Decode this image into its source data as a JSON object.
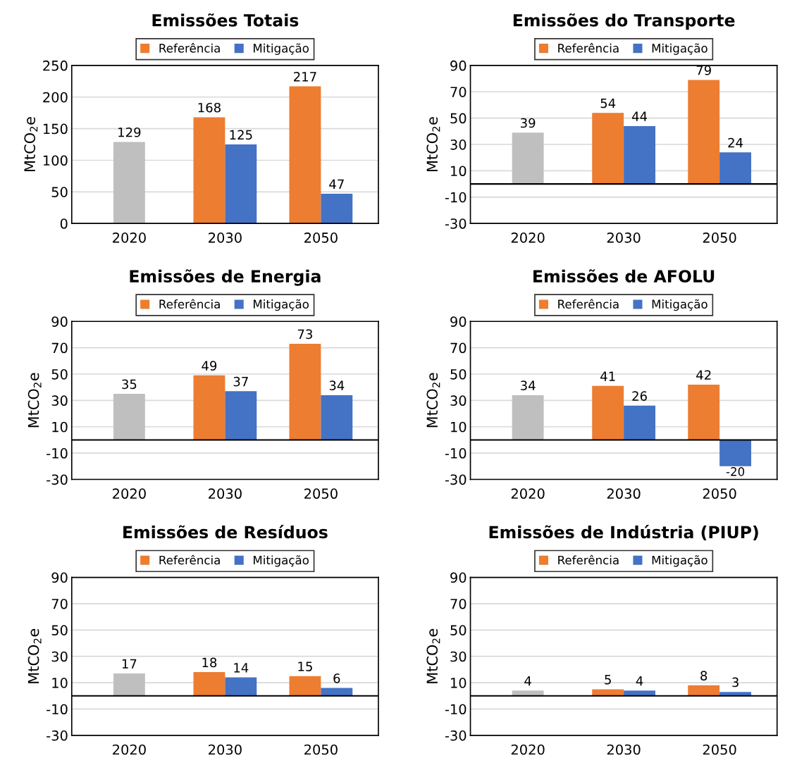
{
  "chart_data": [
    {
      "type": "bar",
      "title": "Emissões Totais",
      "ylabel": "MtCO$_{2}$e",
      "categories": [
        "2020",
        "2030",
        "2050"
      ],
      "ylim": [
        0,
        250
      ],
      "yticks": [
        0,
        50,
        100,
        150,
        200,
        250
      ],
      "grid": "y",
      "legend": "top",
      "data_labels": true,
      "series": [
        {
          "color": "#bfbfbf",
          "values": [
            129,
            null,
            null
          ]
        },
        {
          "name": "Referência",
          "color": "#ed7d31",
          "values": [
            null,
            168,
            217
          ]
        },
        {
          "name": "Mitigação",
          "color": "#4472c4",
          "values": [
            null,
            125,
            47
          ]
        }
      ]
    },
    {
      "type": "bar",
      "title": "Emissões do Transporte",
      "ylabel": "MtCO$_{2}$e",
      "categories": [
        "2020",
        "2030",
        "2050"
      ],
      "ylim": [
        -30,
        90
      ],
      "yticks": [
        -30,
        -10,
        10,
        30,
        50,
        70,
        90
      ],
      "grid": "y",
      "legend": "top",
      "data_labels": true,
      "series": [
        {
          "color": "#bfbfbf",
          "values": [
            39,
            null,
            null
          ]
        },
        {
          "name": "Referência",
          "color": "#ed7d31",
          "values": [
            null,
            54,
            79
          ]
        },
        {
          "name": "Mitigação",
          "color": "#4472c4",
          "values": [
            null,
            44,
            24
          ]
        }
      ]
    },
    {
      "type": "bar",
      "title": "Emissões de Energia",
      "ylabel": "MtCO$_{2}$e",
      "categories": [
        "2020",
        "2030",
        "2050"
      ],
      "ylim": [
        -30,
        90
      ],
      "yticks": [
        -30,
        -10,
        10,
        30,
        50,
        70,
        90
      ],
      "grid": "y",
      "legend": "top",
      "data_labels": true,
      "series": [
        {
          "color": "#bfbfbf",
          "values": [
            35,
            null,
            null
          ]
        },
        {
          "name": "Referência",
          "color": "#ed7d31",
          "values": [
            null,
            49,
            73
          ]
        },
        {
          "name": "Mitigação",
          "color": "#4472c4",
          "values": [
            null,
            37,
            34
          ]
        }
      ]
    },
    {
      "type": "bar",
      "title": "Emissões de AFOLU",
      "ylabel": "MtCO$_{2}$e",
      "categories": [
        "2020",
        "2030",
        "2050"
      ],
      "ylim": [
        -30,
        90
      ],
      "yticks": [
        -30,
        -10,
        10,
        30,
        50,
        70,
        90
      ],
      "grid": "y",
      "legend": "top",
      "data_labels": true,
      "series": [
        {
          "color": "#bfbfbf",
          "values": [
            34,
            null,
            null
          ]
        },
        {
          "name": "Referência",
          "color": "#ed7d31",
          "values": [
            null,
            41,
            42
          ]
        },
        {
          "name": "Mitigação",
          "color": "#4472c4",
          "values": [
            null,
            26,
            -20
          ]
        }
      ]
    },
    {
      "type": "bar",
      "title": "Emissões de Resíduos",
      "ylabel": "MtCO$_{2}$e",
      "categories": [
        "2020",
        "2030",
        "2050"
      ],
      "ylim": [
        -30,
        90
      ],
      "yticks": [
        -30,
        -10,
        10,
        30,
        50,
        70,
        90
      ],
      "grid": "y",
      "legend": "top",
      "data_labels": true,
      "series": [
        {
          "color": "#bfbfbf",
          "values": [
            17,
            null,
            null
          ]
        },
        {
          "name": "Referência",
          "color": "#ed7d31",
          "values": [
            null,
            18,
            15
          ]
        },
        {
          "name": "Mitigação",
          "color": "#4472c4",
          "values": [
            null,
            14,
            6
          ]
        }
      ]
    },
    {
      "type": "bar",
      "title": "Emissões de Indústria (PIUP)",
      "ylabel": "MtCO$_{2}$e",
      "categories": [
        "2020",
        "2030",
        "2050"
      ],
      "ylim": [
        -30,
        90
      ],
      "yticks": [
        -30,
        -10,
        10,
        30,
        50,
        70,
        90
      ],
      "grid": "y",
      "legend": "top",
      "data_labels": true,
      "series": [
        {
          "color": "#bfbfbf",
          "values": [
            4,
            null,
            null
          ]
        },
        {
          "name": "Referência",
          "color": "#ed7d31",
          "values": [
            null,
            5,
            8
          ]
        },
        {
          "name": "Mitigação",
          "color": "#4472c4",
          "values": [
            null,
            4,
            3
          ]
        }
      ]
    }
  ]
}
